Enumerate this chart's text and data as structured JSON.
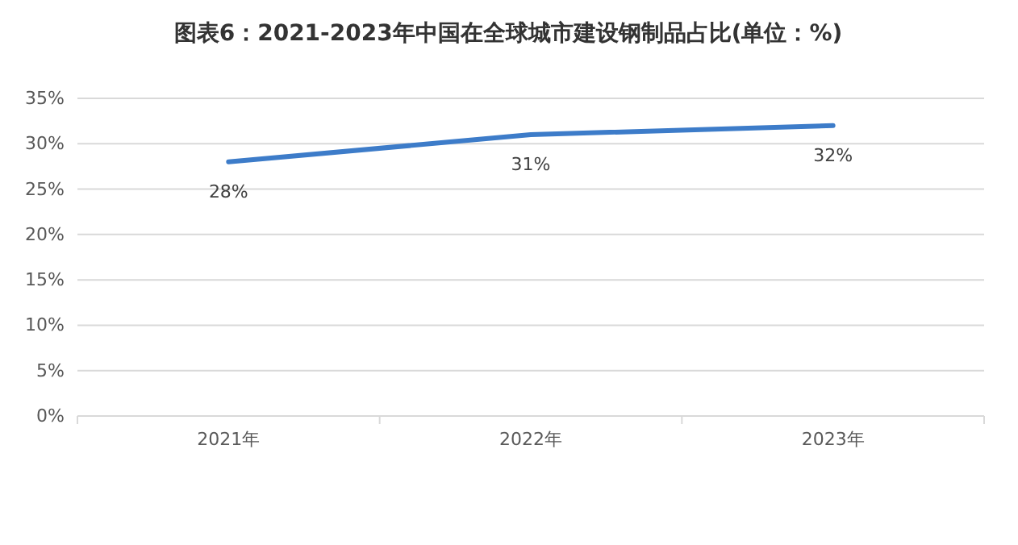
{
  "chart_data": {
    "type": "line",
    "title": "图表6：2021-2023年中国在全球城市建设钢制品占比(单位：%)",
    "categories": [
      "2021年",
      "2022年",
      "2023年"
    ],
    "series": [
      {
        "color": "#3d7cc9",
        "values": [
          28,
          31,
          32
        ],
        "value_labels": [
          "28%",
          "31%",
          "32%"
        ]
      }
    ],
    "ylim": [
      0,
      35
    ],
    "yticks": [
      {
        "value": 0,
        "label": "0%"
      },
      {
        "value": 5,
        "label": "5%"
      },
      {
        "value": 10,
        "label": "10%"
      },
      {
        "value": 15,
        "label": "15%"
      },
      {
        "value": 20,
        "label": "20%"
      },
      {
        "value": 25,
        "label": "25%"
      },
      {
        "value": 30,
        "label": "30%"
      },
      {
        "value": 35,
        "label": "35%"
      }
    ],
    "grid": "y",
    "marker": "none",
    "line_style": "solid"
  }
}
